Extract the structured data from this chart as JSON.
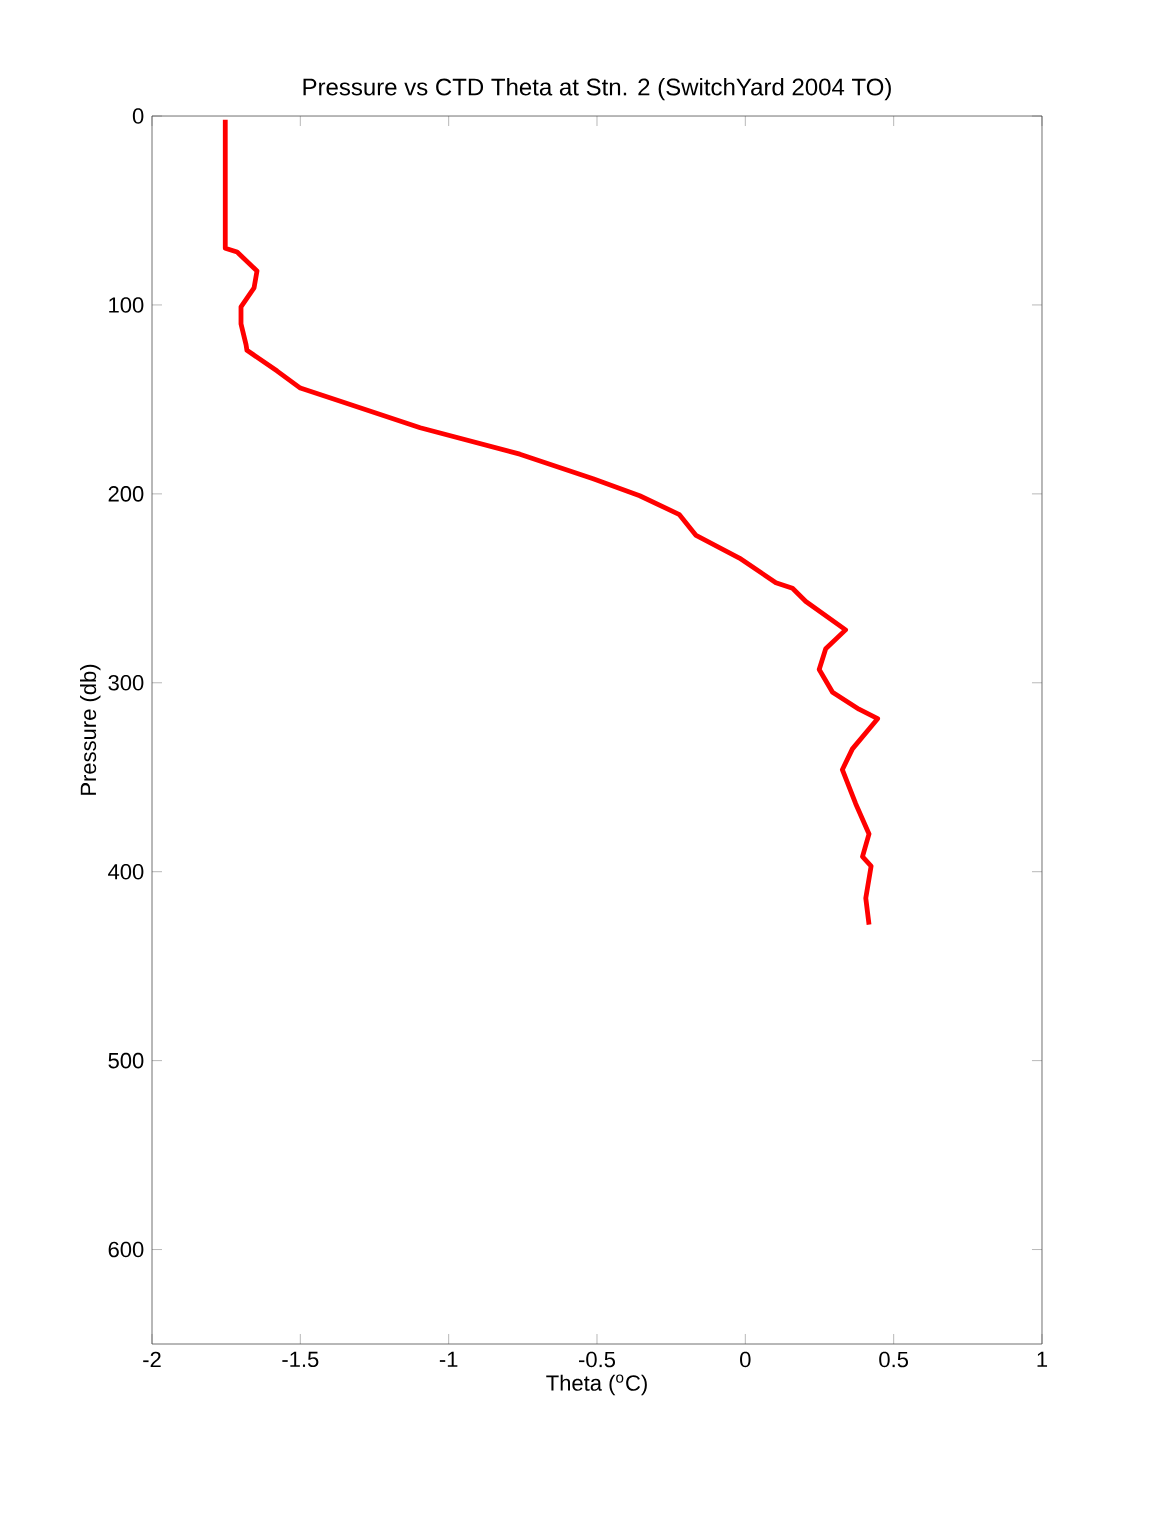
{
  "chart_data": {
    "type": "line",
    "title": "Pressure vs CTD Theta at Stn. 2 (SwitchYard 2004 TO)",
    "xlabel": "Theta ($^{o}$C)",
    "ylabel": "Pressure (db)",
    "x": [
      -1.753,
      -1.753,
      -1.713,
      -1.646,
      -1.656,
      -1.7,
      -1.7,
      -1.683,
      -1.68,
      -1.578,
      -1.5,
      -1.365,
      -1.096,
      -0.76,
      -0.513,
      -0.356,
      -0.222,
      -0.166,
      -0.02,
      0.103,
      0.159,
      0.204,
      0.338,
      0.271,
      0.249,
      0.294,
      0.383,
      0.446,
      0.361,
      0.327,
      0.372,
      0.417,
      0.395,
      0.424,
      0.406,
      0.417
    ],
    "values": [
      2,
      70,
      72,
      82,
      91,
      101,
      110,
      121,
      124,
      135,
      144,
      151,
      165,
      179,
      192,
      201,
      211,
      222,
      234,
      247,
      250,
      257,
      272,
      282,
      293,
      305,
      314,
      319,
      335,
      346,
      364,
      380,
      392,
      397,
      414,
      428
    ],
    "color": "#ff0000",
    "marker": "none",
    "line_style": "solid",
    "xlim": [
      -2,
      1
    ],
    "xticks": [
      -2,
      -1.5,
      -1,
      -0.5,
      0,
      0.5,
      1
    ],
    "ylim": [
      650,
      0
    ],
    "yticks": [
      0,
      100,
      200,
      300,
      400,
      500,
      600
    ]
  }
}
